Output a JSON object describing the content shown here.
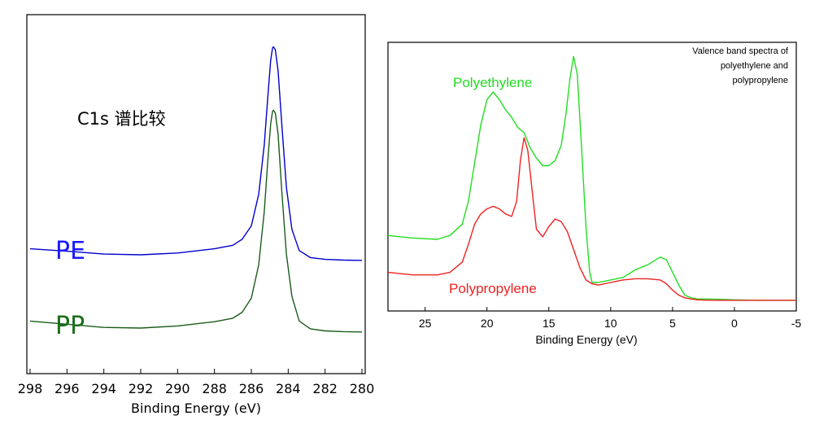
{
  "chart_data": [
    {
      "type": "line",
      "title": "C1s 谱比较",
      "xlabel": "Binding Energy (eV)",
      "ylabel": "",
      "xlim": [
        298,
        280
      ],
      "ylim": [
        0,
        1
      ],
      "x_ticks": [
        "298",
        "296",
        "294",
        "292",
        "290",
        "288",
        "286",
        "284",
        "282",
        "280"
      ],
      "series": [
        {
          "name": "PE",
          "color": "#0000cc",
          "x": [
            298.0,
            296.0,
            294.0,
            292.0,
            290.0,
            288.0,
            287.0,
            286.5,
            286.0,
            285.6,
            285.3,
            285.1,
            284.95,
            284.85,
            284.8,
            284.7,
            284.55,
            284.35,
            284.1,
            283.8,
            283.4,
            282.8,
            282.0,
            281.0,
            280.0
          ],
          "y": [
            0.345,
            0.338,
            0.33,
            0.328,
            0.333,
            0.345,
            0.355,
            0.372,
            0.41,
            0.5,
            0.64,
            0.78,
            0.88,
            0.915,
            0.918,
            0.91,
            0.85,
            0.7,
            0.52,
            0.4,
            0.34,
            0.32,
            0.315,
            0.313,
            0.312
          ]
        },
        {
          "name": "PP",
          "color": "#1a5c1a",
          "x": [
            298.0,
            296.0,
            294.0,
            292.0,
            290.0,
            288.0,
            287.0,
            286.5,
            286.0,
            285.6,
            285.3,
            285.1,
            284.95,
            284.85,
            284.8,
            284.7,
            284.55,
            284.35,
            284.1,
            283.8,
            283.4,
            282.8,
            282.0,
            281.0,
            280.0
          ],
          "y": [
            0.14,
            0.131,
            0.122,
            0.12,
            0.126,
            0.138,
            0.148,
            0.165,
            0.205,
            0.3,
            0.45,
            0.6,
            0.7,
            0.735,
            0.738,
            0.73,
            0.67,
            0.51,
            0.33,
            0.21,
            0.14,
            0.118,
            0.112,
            0.11,
            0.109
          ]
        }
      ]
    },
    {
      "type": "line",
      "title": "Valence band spectra of polyethylene and polypropylene",
      "title_lines": [
        "Valence band spectra of",
        "polyethylene and",
        "polypropylene"
      ],
      "xlabel": "Binding Energy (eV)",
      "ylabel": "",
      "xlim": [
        28,
        -5
      ],
      "ylim": [
        0,
        1
      ],
      "x_ticks": [
        "25",
        "20",
        "15",
        "10",
        "5",
        "0",
        "-5"
      ],
      "series": [
        {
          "name": "Polyethylene",
          "color": "#22dd22",
          "x": [
            28.0,
            26.0,
            24.0,
            23.0,
            22.0,
            21.5,
            21.0,
            20.5,
            20.0,
            19.5,
            19.0,
            18.5,
            18.0,
            17.5,
            17.0,
            16.5,
            16.0,
            15.5,
            15.0,
            14.5,
            14.0,
            13.6,
            13.3,
            13.0,
            12.7,
            12.4,
            12.0,
            11.7,
            11.5,
            11.0,
            10.0,
            9.0,
            8.0,
            7.0,
            6.0,
            5.5,
            5.0,
            4.5,
            4.0,
            3.5,
            3.0,
            2.0,
            0.0,
            -2.0,
            -5.0
          ],
          "y": [
            0.265,
            0.255,
            0.25,
            0.265,
            0.31,
            0.4,
            0.55,
            0.7,
            0.8,
            0.83,
            0.8,
            0.76,
            0.73,
            0.69,
            0.67,
            0.61,
            0.57,
            0.54,
            0.54,
            0.56,
            0.62,
            0.75,
            0.88,
            0.97,
            0.9,
            0.65,
            0.3,
            0.12,
            0.08,
            0.08,
            0.09,
            0.1,
            0.13,
            0.15,
            0.18,
            0.17,
            0.12,
            0.07,
            0.03,
            0.02,
            0.015,
            0.015,
            0.012,
            0.01,
            0.01
          ]
        },
        {
          "name": "Polypropylene",
          "color": "#ee2222",
          "x": [
            28.0,
            26.0,
            24.0,
            23.0,
            22.0,
            21.5,
            21.0,
            20.5,
            20.0,
            19.5,
            19.0,
            18.5,
            18.0,
            17.6,
            17.3,
            17.0,
            16.7,
            16.3,
            16.0,
            15.5,
            15.0,
            14.5,
            14.0,
            13.5,
            13.0,
            12.5,
            12.0,
            11.5,
            11.0,
            10.0,
            9.0,
            8.0,
            7.0,
            6.0,
            5.5,
            5.0,
            4.5,
            4.0,
            3.5,
            3.0,
            2.0,
            0.0,
            -2.0,
            -5.0
          ],
          "y": [
            0.12,
            0.11,
            0.11,
            0.12,
            0.16,
            0.23,
            0.31,
            0.35,
            0.37,
            0.38,
            0.37,
            0.35,
            0.34,
            0.4,
            0.56,
            0.65,
            0.6,
            0.42,
            0.29,
            0.26,
            0.3,
            0.33,
            0.32,
            0.28,
            0.21,
            0.14,
            0.09,
            0.075,
            0.07,
            0.08,
            0.09,
            0.095,
            0.095,
            0.09,
            0.075,
            0.05,
            0.03,
            0.02,
            0.015,
            0.012,
            0.01,
            0.01,
            0.01,
            0.01
          ]
        }
      ]
    }
  ]
}
